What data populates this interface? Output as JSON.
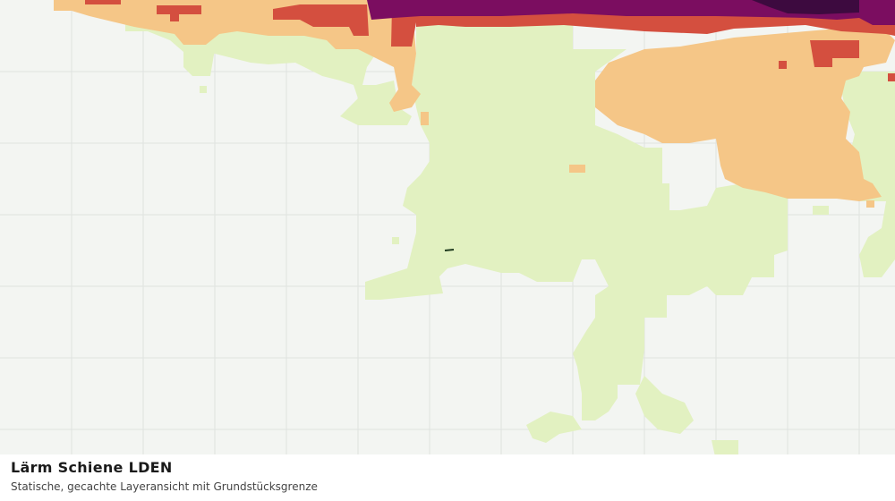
{
  "map": {
    "title": "Lärm Schiene LDEN",
    "subtitle": "Statische, gecachte Layeransicht mit Grundstücksgrenze"
  }
}
